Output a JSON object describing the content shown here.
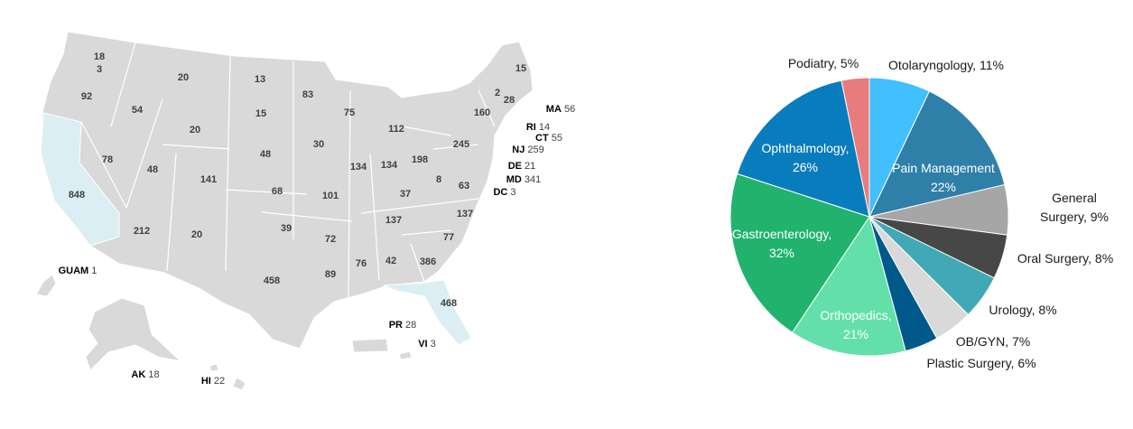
{
  "chart_data": [
    {
      "type": "map",
      "regions": [
        {
          "value": 18
        },
        {
          "value": 3
        },
        {
          "value": 92
        },
        {
          "value": 54
        },
        {
          "value": 20
        },
        {
          "value": 13
        },
        {
          "value": 83
        },
        {
          "value": 75
        },
        {
          "value": 15
        },
        {
          "value": 2
        },
        {
          "value": 28
        },
        {
          "value": 160
        },
        {
          "value": 112
        },
        {
          "value": 15
        },
        {
          "value": 20
        },
        {
          "value": 30
        },
        {
          "value": 245
        },
        {
          "value": 78
        },
        {
          "value": 48
        },
        {
          "value": 48
        },
        {
          "value": 134
        },
        {
          "value": 134
        },
        {
          "value": 198
        },
        {
          "value": 141
        },
        {
          "value": 68
        },
        {
          "value": 101
        },
        {
          "value": 37
        },
        {
          "value": 8
        },
        {
          "value": 63
        },
        {
          "value": 848
        },
        {
          "value": 212
        },
        {
          "value": 20
        },
        {
          "value": 39
        },
        {
          "value": 72
        },
        {
          "value": 137
        },
        {
          "value": 137
        },
        {
          "value": 77
        },
        {
          "value": 89
        },
        {
          "value": 76
        },
        {
          "value": 42
        },
        {
          "value": 386
        },
        {
          "value": 458
        },
        {
          "value": 468
        },
        {
          "name": "MA",
          "value": 56
        },
        {
          "name": "RI",
          "value": 14
        },
        {
          "name": "CT",
          "value": 55
        },
        {
          "name": "NJ",
          "value": 259
        },
        {
          "name": "DE",
          "value": 21
        },
        {
          "name": "MD",
          "value": 341
        },
        {
          "name": "DC",
          "value": 3
        },
        {
          "name": "GUAM",
          "value": 1
        },
        {
          "name": "PR",
          "value": 28
        },
        {
          "name": "VI",
          "value": 3
        },
        {
          "name": "AK",
          "value": 18
        },
        {
          "name": "HI",
          "value": 22
        }
      ]
    },
    {
      "type": "pie",
      "values": [
        11,
        22,
        9,
        8,
        8,
        7,
        6,
        21,
        32,
        26,
        5
      ],
      "value_labels": [
        "Otolaryngology, 11%",
        "Pain Management\n22%",
        "General\nSurgery, 9%",
        "Oral Surgery, 8%",
        "Urology, 8%",
        "OB/GYN, 7%",
        "Plastic Surgery, 6%",
        "Orthopedics,\n21%",
        "Gastroenterology,\n32%",
        "Ophthalmology,\n26%",
        "Podiatry, 5%"
      ],
      "colors": [
        "#41bfff",
        "#2e80a9",
        "#a6a6a6",
        "#474747",
        "#40a9b5",
        "#d9d9d9",
        "#00598a",
        "#63e0aa",
        "#21b36e",
        "#097cbd",
        "#e87c7c"
      ]
    }
  ]
}
